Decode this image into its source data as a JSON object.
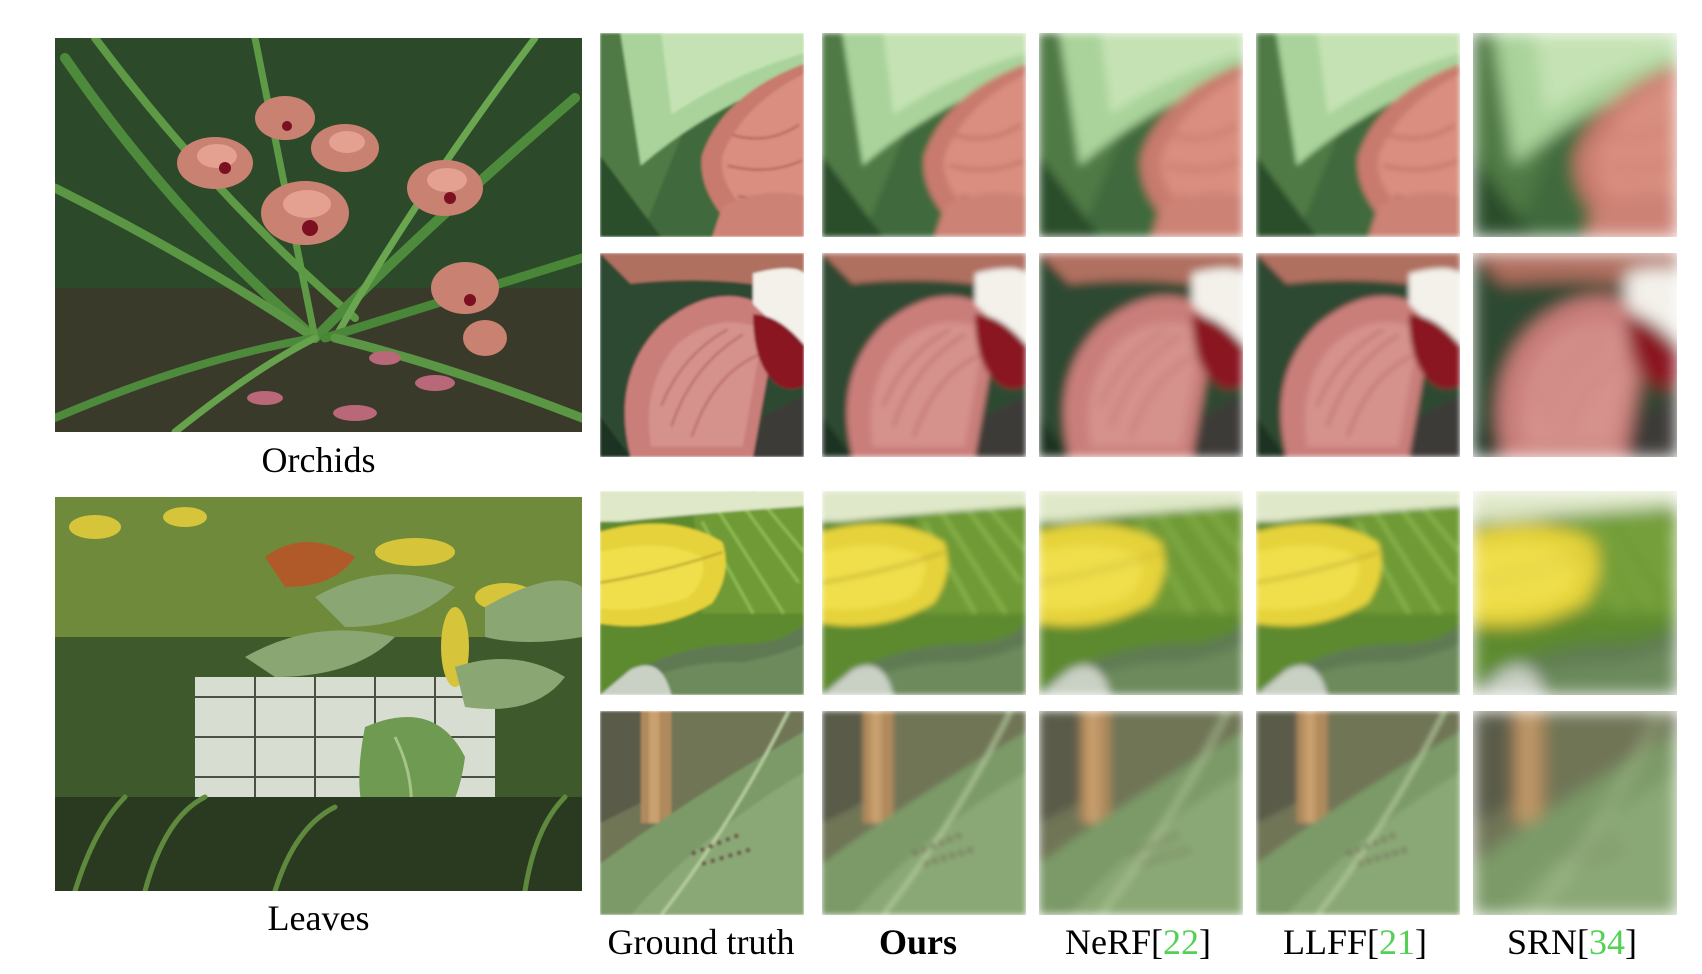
{
  "scenes": [
    {
      "label": "Orchids"
    },
    {
      "label": "Leaves"
    }
  ],
  "columns": [
    {
      "name": "Ground truth",
      "bold": false,
      "ref": ""
    },
    {
      "name": "Ours",
      "bold": true,
      "ref": ""
    },
    {
      "name": "NeRF",
      "bold": false,
      "ref": "22"
    },
    {
      "name": "LLFF",
      "bold": false,
      "ref": "21"
    },
    {
      "name": "SRN",
      "bold": false,
      "ref": "34"
    }
  ],
  "colors": {
    "citation": "#54d054"
  }
}
